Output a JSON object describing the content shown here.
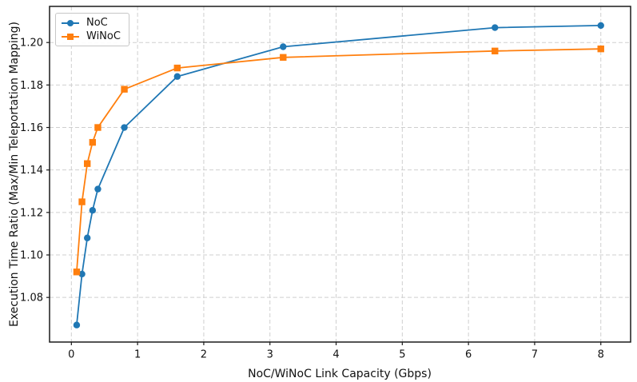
{
  "chart_data": {
    "type": "line",
    "title": "",
    "xlabel": "NoC/WiNoC Link Capacity (Gbps)",
    "ylabel": "Execution Time Ratio (Max/Min Teleportation Mapping)",
    "x": [
      0.08,
      0.16,
      0.24,
      0.32,
      0.4,
      0.8,
      1.6,
      3.2,
      6.4,
      8.0
    ],
    "series": [
      {
        "name": "NoC",
        "color": "#1f77b4",
        "marker": "circle",
        "values": [
          1.067,
          1.091,
          1.108,
          1.121,
          1.131,
          1.16,
          1.184,
          1.198,
          1.207,
          1.208
        ]
      },
      {
        "name": "WiNoC",
        "color": "#ff7f0e",
        "marker": "square",
        "values": [
          1.092,
          1.125,
          1.143,
          1.153,
          1.16,
          1.178,
          1.188,
          1.193,
          1.196,
          1.197
        ]
      }
    ],
    "x_ticks": [
      0,
      1,
      2,
      3,
      4,
      5,
      6,
      7,
      8
    ],
    "x_tick_labels": [
      "0",
      "1",
      "2",
      "3",
      "4",
      "5",
      "6",
      "7",
      "8"
    ],
    "y_ticks": [
      1.08,
      1.1,
      1.12,
      1.14,
      1.16,
      1.18,
      1.2
    ],
    "y_tick_labels": [
      "1.08",
      "1.10",
      "1.12",
      "1.14",
      "1.16",
      "1.18",
      "1.20"
    ],
    "xlim": [
      -0.33,
      8.45
    ],
    "ylim": [
      1.059,
      1.217
    ],
    "grid": true,
    "grid_style": "dashed",
    "legend_position": "upper-left"
  }
}
